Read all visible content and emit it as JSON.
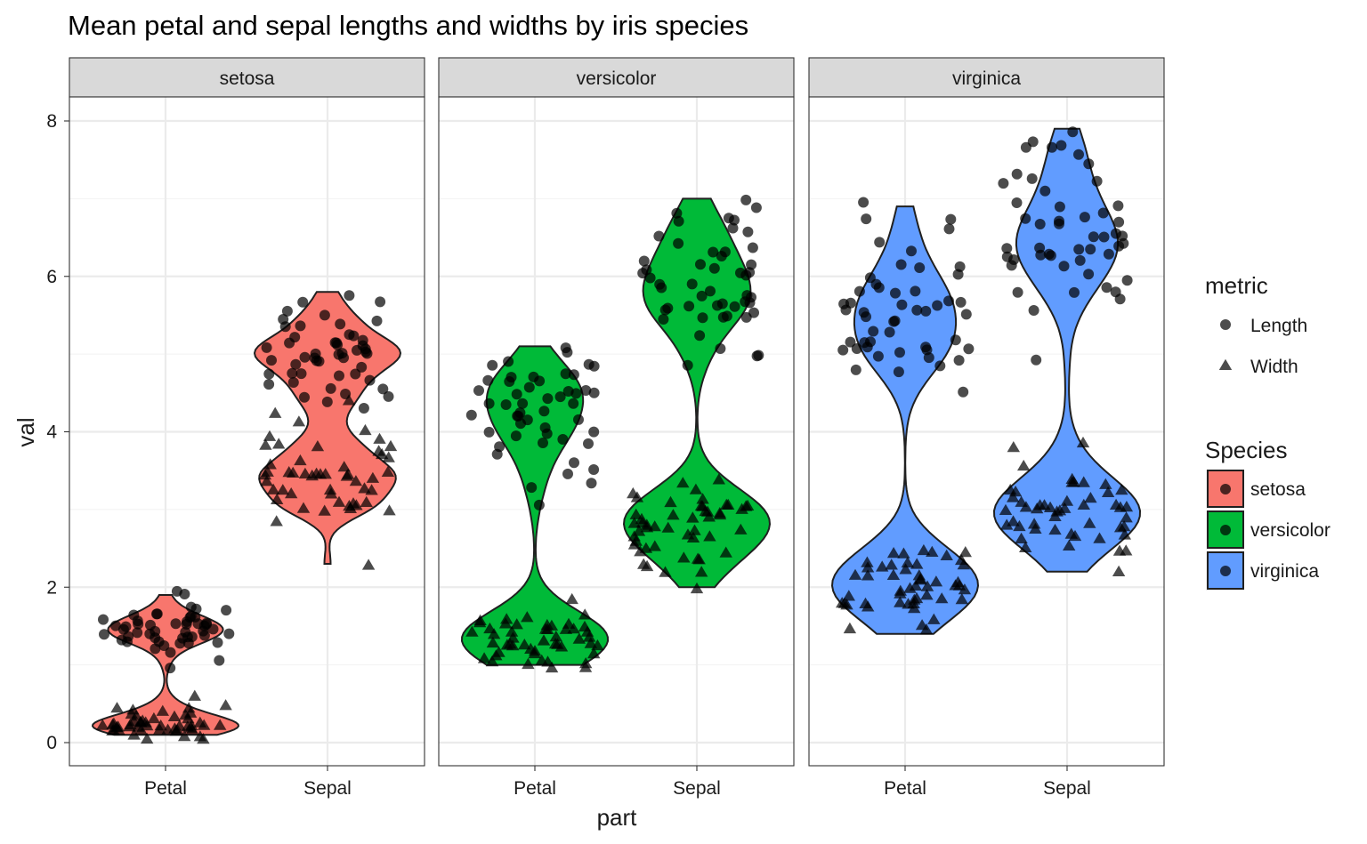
{
  "chart_data": {
    "type": "violin",
    "title": "Mean petal and sepal lengths and widths by iris species",
    "xlabel": "part",
    "ylabel": "val",
    "ylim": [
      -0.3,
      8.3
    ],
    "y_ticks": [
      "0",
      "2",
      "4",
      "6",
      "8"
    ],
    "grid": true,
    "facets": [
      "setosa",
      "versicolor",
      "virginica"
    ],
    "categories": [
      "Petal",
      "Sepal"
    ],
    "legend_placement": "right",
    "legends": {
      "metric": {
        "title": "metric",
        "items": [
          "Length",
          "Width"
        ],
        "shapes": [
          "circle",
          "triangle"
        ]
      },
      "species": {
        "title": "Species",
        "items": [
          "setosa",
          "versicolor",
          "virginica"
        ],
        "colors": [
          "#F8766D",
          "#00BA38",
          "#619CFF"
        ]
      }
    },
    "violin_range": {
      "setosa": {
        "Petal": [
          0.1,
          1.9
        ],
        "Sepal": [
          2.3,
          5.8
        ]
      },
      "versicolor": {
        "Petal": [
          1.0,
          5.1
        ],
        "Sepal": [
          2.0,
          7.0
        ]
      },
      "virginica": {
        "Petal": [
          1.4,
          6.9
        ],
        "Sepal": [
          2.2,
          7.9
        ]
      }
    },
    "points": {
      "setosa": {
        "Petal": {
          "Length": [
            1.4,
            1.4,
            1.3,
            1.5,
            1.4,
            1.7,
            1.4,
            1.5,
            1.4,
            1.5,
            1.5,
            1.6,
            1.4,
            1.1,
            1.2,
            1.5,
            1.3,
            1.4,
            1.7,
            1.5,
            1.7,
            1.5,
            1.0,
            1.7,
            1.9,
            1.6,
            1.6,
            1.5,
            1.4,
            1.6,
            1.6,
            1.5,
            1.5,
            1.4,
            1.5,
            1.2,
            1.3,
            1.4,
            1.3,
            1.5,
            1.3,
            1.3,
            1.3,
            1.6,
            1.9,
            1.4,
            1.6,
            1.4,
            1.5,
            1.4
          ],
          "Width": [
            0.2,
            0.2,
            0.2,
            0.2,
            0.2,
            0.4,
            0.3,
            0.2,
            0.2,
            0.1,
            0.2,
            0.2,
            0.1,
            0.1,
            0.2,
            0.4,
            0.4,
            0.3,
            0.3,
            0.3,
            0.2,
            0.4,
            0.2,
            0.5,
            0.2,
            0.2,
            0.4,
            0.2,
            0.2,
            0.2,
            0.2,
            0.4,
            0.1,
            0.2,
            0.2,
            0.2,
            0.2,
            0.1,
            0.2,
            0.2,
            0.3,
            0.3,
            0.2,
            0.6,
            0.4,
            0.3,
            0.2,
            0.2,
            0.2,
            0.2
          ]
        },
        "Sepal": {
          "Length": [
            5.1,
            4.9,
            4.7,
            4.6,
            5.0,
            5.4,
            4.6,
            5.0,
            4.4,
            4.9,
            5.4,
            4.8,
            4.8,
            4.3,
            5.8,
            5.7,
            5.4,
            5.1,
            5.7,
            5.1,
            5.4,
            5.1,
            4.6,
            5.1,
            4.8,
            5.0,
            5.0,
            5.2,
            5.2,
            4.7,
            4.8,
            5.4,
            5.2,
            5.5,
            4.9,
            5.0,
            5.5,
            4.9,
            4.4,
            5.1,
            5.0,
            4.5,
            4.4,
            5.0,
            5.1,
            4.8,
            5.1,
            4.6,
            5.3,
            5.0
          ],
          "Width": [
            3.5,
            3.0,
            3.2,
            3.1,
            3.6,
            3.9,
            3.4,
            3.4,
            2.9,
            3.1,
            3.7,
            3.4,
            3.0,
            3.0,
            4.0,
            4.4,
            3.9,
            3.5,
            3.8,
            3.8,
            3.4,
            3.7,
            3.6,
            3.3,
            3.4,
            3.0,
            3.4,
            3.5,
            3.4,
            3.2,
            3.1,
            3.4,
            4.1,
            4.2,
            3.1,
            3.2,
            3.5,
            3.6,
            3.0,
            3.4,
            3.5,
            2.3,
            3.2,
            3.5,
            3.8,
            3.0,
            3.8,
            3.2,
            3.7,
            3.3
          ]
        }
      },
      "versicolor": {
        "Petal": {
          "Length": [
            4.7,
            4.5,
            4.9,
            4.0,
            4.6,
            4.5,
            4.7,
            3.3,
            4.6,
            3.9,
            3.5,
            4.2,
            4.0,
            4.7,
            3.6,
            4.4,
            4.5,
            4.1,
            4.5,
            3.9,
            4.8,
            4.0,
            4.9,
            4.7,
            4.3,
            4.4,
            4.8,
            5.0,
            4.5,
            3.5,
            3.8,
            3.7,
            3.9,
            5.1,
            4.5,
            4.5,
            4.7,
            4.4,
            4.1,
            4.0,
            4.4,
            4.6,
            4.0,
            3.3,
            4.2,
            4.2,
            4.2,
            4.3,
            3.0,
            4.1
          ],
          "Width": [
            1.4,
            1.5,
            1.5,
            1.3,
            1.5,
            1.3,
            1.6,
            1.0,
            1.3,
            1.4,
            1.0,
            1.5,
            1.0,
            1.4,
            1.3,
            1.4,
            1.5,
            1.0,
            1.5,
            1.1,
            1.8,
            1.3,
            1.5,
            1.2,
            1.3,
            1.4,
            1.4,
            1.7,
            1.5,
            1.0,
            1.1,
            1.0,
            1.2,
            1.6,
            1.5,
            1.6,
            1.5,
            1.3,
            1.3,
            1.3,
            1.2,
            1.4,
            1.2,
            1.0,
            1.3,
            1.2,
            1.3,
            1.3,
            1.1,
            1.3
          ]
        },
        "Sepal": {
          "Length": [
            7.0,
            6.4,
            6.9,
            5.5,
            6.5,
            5.7,
            6.3,
            4.9,
            6.6,
            5.2,
            5.0,
            5.9,
            6.0,
            6.1,
            5.6,
            6.7,
            5.6,
            5.8,
            6.2,
            5.6,
            5.9,
            6.1,
            6.3,
            6.1,
            6.4,
            6.6,
            6.8,
            6.7,
            6.0,
            5.7,
            5.5,
            5.5,
            5.8,
            6.0,
            5.4,
            6.0,
            6.7,
            6.3,
            5.6,
            5.5,
            5.5,
            6.1,
            5.8,
            5.0,
            5.6,
            5.7,
            5.7,
            6.2,
            5.1,
            5.7
          ],
          "Width": [
            3.2,
            3.2,
            3.1,
            2.3,
            2.8,
            2.8,
            3.3,
            2.4,
            2.9,
            2.7,
            2.0,
            3.0,
            2.2,
            2.9,
            2.9,
            3.1,
            3.0,
            2.7,
            2.2,
            2.5,
            3.2,
            2.8,
            2.5,
            2.8,
            2.9,
            3.0,
            2.8,
            3.0,
            2.9,
            2.6,
            2.4,
            2.4,
            2.7,
            2.7,
            3.0,
            3.4,
            3.1,
            2.3,
            3.0,
            2.5,
            2.6,
            3.0,
            2.6,
            2.3,
            2.7,
            3.0,
            2.9,
            2.9,
            2.5,
            2.8
          ]
        }
      },
      "virginica": {
        "Petal": {
          "Length": [
            6.0,
            5.1,
            5.9,
            5.6,
            5.8,
            6.6,
            4.5,
            6.3,
            5.8,
            6.1,
            5.1,
            5.3,
            5.5,
            5.0,
            5.1,
            5.3,
            5.5,
            6.7,
            6.9,
            5.0,
            5.7,
            4.9,
            6.7,
            4.9,
            5.7,
            6.0,
            4.8,
            4.9,
            5.6,
            5.8,
            6.1,
            6.4,
            5.6,
            5.1,
            5.6,
            6.1,
            5.6,
            5.5,
            4.8,
            5.4,
            5.6,
            5.1,
            5.1,
            5.9,
            5.7,
            5.2,
            5.0,
            5.2,
            5.4,
            5.1
          ],
          "Width": [
            2.5,
            1.9,
            2.1,
            1.8,
            2.2,
            2.1,
            1.7,
            1.8,
            1.8,
            2.5,
            2.0,
            1.9,
            2.1,
            2.0,
            2.4,
            2.3,
            1.8,
            2.2,
            2.3,
            1.5,
            2.3,
            2.0,
            2.0,
            1.8,
            2.1,
            1.8,
            1.8,
            1.8,
            2.1,
            1.6,
            1.9,
            2.0,
            2.2,
            1.5,
            1.4,
            2.3,
            2.4,
            1.8,
            1.8,
            2.1,
            2.4,
            2.3,
            1.9,
            2.3,
            2.5,
            2.3,
            1.9,
            2.0,
            2.3,
            1.8
          ]
        },
        "Sepal": {
          "Length": [
            6.3,
            5.8,
            7.1,
            6.3,
            6.5,
            7.6,
            4.9,
            7.3,
            6.7,
            7.2,
            6.5,
            6.4,
            6.8,
            5.7,
            5.8,
            6.4,
            6.5,
            7.7,
            7.7,
            6.0,
            6.9,
            5.6,
            7.7,
            6.3,
            6.7,
            7.2,
            6.2,
            6.1,
            6.4,
            7.2,
            7.4,
            7.9,
            6.4,
            6.3,
            6.1,
            7.7,
            6.3,
            6.4,
            6.0,
            6.9,
            6.7,
            6.9,
            5.8,
            6.8,
            6.7,
            6.7,
            6.3,
            6.5,
            6.2,
            5.9
          ],
          "Width": [
            3.3,
            2.7,
            3.0,
            2.9,
            3.0,
            3.0,
            2.5,
            2.9,
            2.5,
            3.6,
            3.2,
            2.7,
            3.0,
            2.5,
            2.8,
            3.2,
            3.0,
            3.8,
            2.6,
            2.2,
            3.2,
            2.8,
            2.8,
            2.7,
            3.3,
            3.2,
            2.8,
            3.0,
            2.8,
            3.0,
            2.8,
            3.8,
            2.8,
            2.8,
            2.6,
            3.0,
            3.4,
            3.1,
            3.0,
            3.1,
            3.1,
            3.1,
            2.7,
            3.2,
            3.3,
            3.0,
            2.5,
            3.0,
            3.4,
            3.0
          ]
        }
      }
    }
  }
}
